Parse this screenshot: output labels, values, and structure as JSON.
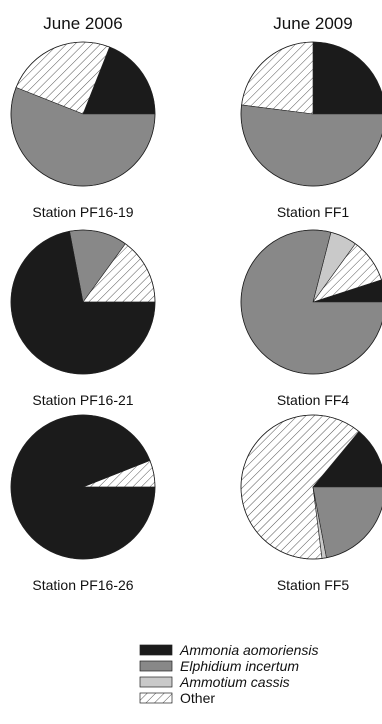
{
  "column_titles": [
    "June 2006",
    "June 2009"
  ],
  "colors": {
    "Ammonia aomoriensis": "#1b1b1b",
    "Elphidium incertum": "#888888",
    "Ammotium cassis": "#c9c9c9",
    "Other": "hatched"
  },
  "chart_data": {
    "type": "pie",
    "legend_position": "bottom",
    "legend": [
      {
        "name": "Ammonia aomoriensis",
        "italic": true
      },
      {
        "name": "Elphidium incertum",
        "italic": true
      },
      {
        "name": "Ammotium cassis",
        "italic": true
      },
      {
        "name": "Other",
        "italic": false
      }
    ],
    "pies": [
      {
        "column": "June 2006",
        "station": "Station PF16-19",
        "slices": [
          {
            "name": "Ammonia aomoriensis",
            "value": 19
          },
          {
            "name": "Other",
            "value": 25
          },
          {
            "name": "Elphidium incertum",
            "value": 56
          }
        ]
      },
      {
        "column": "June 2009",
        "station": "Station FF1",
        "slices": [
          {
            "name": "Ammonia aomoriensis",
            "value": 25
          },
          {
            "name": "Other",
            "value": 23
          },
          {
            "name": "Elphidium incertum",
            "value": 52
          }
        ]
      },
      {
        "column": "June 2006",
        "station": "Station PF16-21",
        "slices": [
          {
            "name": "Other",
            "value": 15
          },
          {
            "name": "Elphidium incertum",
            "value": 13
          },
          {
            "name": "Ammonia aomoriensis",
            "value": 72
          }
        ]
      },
      {
        "column": "June 2009",
        "station": "Station FF4",
        "slices": [
          {
            "name": "Ammonia aomoriensis",
            "value": 5
          },
          {
            "name": "Other",
            "value": 10
          },
          {
            "name": "Ammotium cassis",
            "value": 6
          },
          {
            "name": "Elphidium incertum",
            "value": 79
          }
        ]
      },
      {
        "column": "June 2006",
        "station": "Station PF16-26",
        "slices": [
          {
            "name": "Other",
            "value": 6
          },
          {
            "name": "Ammonia aomoriensis",
            "value": 94
          }
        ]
      },
      {
        "column": "June 2009",
        "station": "Station FF5",
        "slices": [
          {
            "name": "Ammonia aomoriensis",
            "value": 14
          },
          {
            "name": "Other",
            "value": 63
          },
          {
            "name": "Ammotium cassis",
            "value": 1
          },
          {
            "name": "Elphidium incertum",
            "value": 22
          }
        ]
      }
    ]
  }
}
